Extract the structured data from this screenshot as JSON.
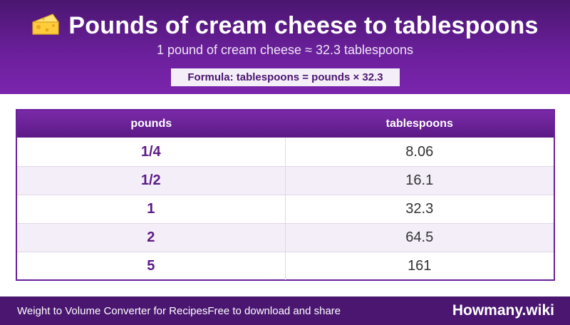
{
  "header": {
    "icon": "cheese-icon",
    "title": "Pounds of cream cheese to tablespoons",
    "subtitle": "1 pound of cream cheese ≈ 32.3 tablespoons",
    "formula": "Formula: tablespoons = pounds × 32.3"
  },
  "table": {
    "columns": [
      "pounds",
      "tablespoons"
    ],
    "rows": [
      {
        "pounds": "1/4",
        "tablespoons": "8.06"
      },
      {
        "pounds": "1/2",
        "tablespoons": "16.1"
      },
      {
        "pounds": "1",
        "tablespoons": "32.3"
      },
      {
        "pounds": "2",
        "tablespoons": "64.5"
      },
      {
        "pounds": "5",
        "tablespoons": "161"
      }
    ]
  },
  "footer": {
    "left_text": "Weight to Volume Converter for RecipesFree to download and share",
    "brand": "Howmany.wiki"
  },
  "colors": {
    "header_purple": "#6a1f9a",
    "dark_purple": "#4a1670",
    "row_alt": "#f3eef8"
  }
}
